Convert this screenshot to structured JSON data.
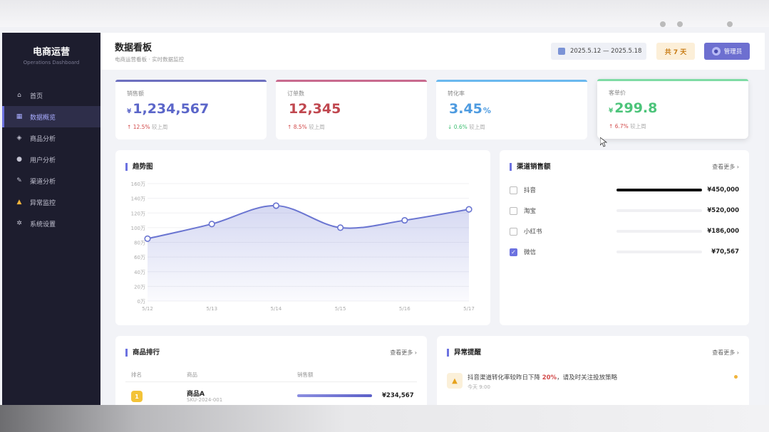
{
  "sidebar": {
    "brand_title": "电商运营",
    "brand_subtitle": "Operations Dashboard",
    "items": [
      {
        "label": "首页",
        "icon": "home-icon"
      },
      {
        "label": "数据概览",
        "icon": "chart-icon",
        "active": true
      },
      {
        "label": "商品分析",
        "icon": "box-icon"
      },
      {
        "label": "用户分析",
        "icon": "users-icon"
      },
      {
        "label": "渠道分析",
        "icon": "channel-icon"
      },
      {
        "label": "异常监控",
        "icon": "warning-icon"
      },
      {
        "label": "系统设置",
        "icon": "gear-icon"
      }
    ]
  },
  "header": {
    "title": "数据看板",
    "subtitle": "电商运营看板 · 实时数据监控",
    "date_range": "2025.5.12 — 2025.5.18",
    "days_badge": "共 7 天",
    "admin_label": "管理员"
  },
  "kpis": [
    {
      "label": "销售额",
      "prefix": "¥",
      "value": "1,234,567",
      "suffix": "",
      "trend_arrow": "↑",
      "trend": "12.5%",
      "trend_dir": "up",
      "compare": "较上周",
      "color": "#5b66c9",
      "bar": "#6c6fbf"
    },
    {
      "label": "订单数",
      "prefix": "",
      "value": "12,345",
      "suffix": "",
      "trend_arrow": "↑",
      "trend": "8.5%",
      "trend_dir": "up",
      "compare": "较上周",
      "color": "#c0474f",
      "bar": "#c86a8e"
    },
    {
      "label": "转化率",
      "prefix": "",
      "value": "3.45",
      "suffix": "%",
      "trend_arrow": "↓",
      "trend": "0.6%",
      "trend_dir": "down",
      "compare": "较上周",
      "color": "#4e9be0",
      "bar": "#6ab8ee"
    },
    {
      "label": "客单价",
      "prefix": "¥",
      "value": "299.8",
      "suffix": "",
      "trend_arrow": "↑",
      "trend": "6.7%",
      "trend_dir": "up",
      "compare": "较上周",
      "color": "#4cc47a",
      "bar": "#7fdba5"
    }
  ],
  "trend": {
    "title": "趋势图"
  },
  "chart_data": {
    "type": "area",
    "title": "趋势图",
    "categories": [
      "5/12",
      "5/13",
      "5/14",
      "5/15",
      "5/16",
      "5/17"
    ],
    "series": [
      {
        "values": [
          85,
          105,
          130,
          100,
          110,
          125
        ]
      }
    ],
    "yticks": [
      "0万",
      "20万",
      "40万",
      "60万",
      "80万",
      "100万",
      "120万",
      "140万",
      "160万"
    ],
    "ylim": [
      0,
      160
    ],
    "grid": true,
    "color": "#6a75d1"
  },
  "channels": {
    "title": "渠道销售额",
    "more": "查看更多 ›",
    "items": [
      {
        "name": "抖音",
        "amount": "¥450,000",
        "checked": false,
        "ratio": 1.0
      },
      {
        "name": "淘宝",
        "amount": "¥520,000",
        "checked": false,
        "ratio": 0.0
      },
      {
        "name": "小红书",
        "amount": "¥186,000",
        "checked": false,
        "ratio": 0.0
      },
      {
        "name": "微信",
        "amount": "¥70,567",
        "checked": true,
        "ratio": 0.0
      }
    ]
  },
  "ranking": {
    "title": "商品排行",
    "more": "查看更多 ›",
    "columns": [
      "排名",
      "商品",
      "销售额"
    ],
    "rows": [
      {
        "rank": "1",
        "name": "商品A",
        "sku": "SKU-2024-001",
        "amount": "¥234,567",
        "ratio": 1.0
      }
    ]
  },
  "alerts": {
    "title": "异常提醒",
    "more": "查看更多 ›",
    "items": [
      {
        "text_before": "抖音渠道转化率较昨日下降 ",
        "highlight": "20%",
        "text_after": "，请及时关注投放策略",
        "time": "今天 9:00"
      }
    ]
  }
}
